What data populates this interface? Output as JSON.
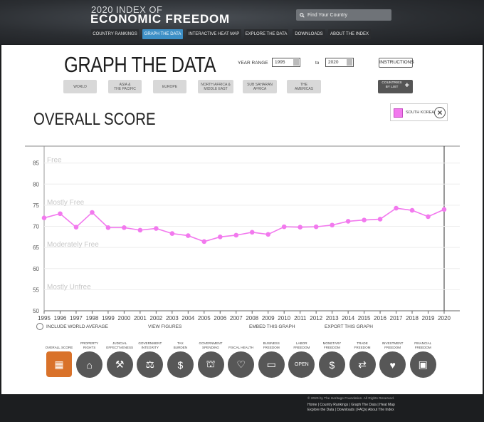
{
  "header": {
    "brand_small": "2020 INDEX OF",
    "brand_big": "ECONOMIC FREEDOM",
    "search_placeholder": "Find Your Country",
    "nav": [
      {
        "label": "COUNTRY RANKINGS",
        "active": false
      },
      {
        "label": "GRAPH THE DATA",
        "active": true
      },
      {
        "label": "INTERACTIVE HEAT MAP",
        "active": false
      },
      {
        "label": "EXPLORE THE DATA",
        "active": false
      },
      {
        "label": "DOWNLOADS",
        "active": false
      },
      {
        "label": "ABOUT THE INDEX",
        "active": false
      }
    ]
  },
  "controls": {
    "page_title": "GRAPH THE DATA",
    "year_range_label": "YEAR RANGE",
    "year_from": "1995",
    "to_label": "to",
    "year_to": "2020",
    "instructions": "INSTRUCTIONS",
    "regions": [
      {
        "label": "WORLD"
      },
      {
        "label": "ASIA &\nTHE PACIFIC"
      },
      {
        "label": "EUROPE"
      },
      {
        "label": "NORTH AFRICA &\nMIDDLE EAST"
      },
      {
        "label": "SUB SAHARAN\nAFRICA"
      },
      {
        "label": "THE\nAMERICAS"
      }
    ],
    "countries_by_list": "COUNTRIES\nBY LIST"
  },
  "chart_title": "OVERALL SCORE",
  "legend": {
    "country": "SOUTH KOREA",
    "color": "#f279ee",
    "close_icon": "close-icon"
  },
  "chart_data": {
    "type": "line",
    "x": [
      1995,
      1996,
      1997,
      1998,
      1999,
      2000,
      2001,
      2002,
      2003,
      2004,
      2005,
      2006,
      2007,
      2008,
      2009,
      2010,
      2011,
      2012,
      2013,
      2014,
      2015,
      2016,
      2017,
      2018,
      2019,
      2020
    ],
    "series": [
      {
        "name": "SOUTH KOREA",
        "color": "#f279ee",
        "values": [
          72.0,
          73.0,
          69.8,
          73.3,
          69.7,
          69.7,
          69.1,
          69.5,
          68.3,
          67.8,
          66.4,
          67.5,
          67.9,
          68.6,
          68.1,
          69.9,
          69.8,
          69.9,
          70.3,
          71.2,
          71.5,
          71.7,
          74.3,
          73.8,
          72.3,
          74.0
        ]
      }
    ],
    "ylim": [
      50,
      89
    ],
    "yticks": [
      50,
      55,
      60,
      65,
      70,
      75,
      80,
      85
    ],
    "bands": [
      {
        "label": "Free",
        "y": 85
      },
      {
        "label": "Mostly Free",
        "y": 75
      },
      {
        "label": "Moderately Free",
        "y": 65
      },
      {
        "label": "Mostly Unfree",
        "y": 55
      }
    ],
    "grid": true
  },
  "chart_options": {
    "include_world_average": "INCLUDE WORLD AVERAGE",
    "view_figures": "VIEW FIGURES",
    "embed": "EMBED THIS GRAPH",
    "export": "EXPORT THIS GRAPH"
  },
  "categories": [
    {
      "label": "OVERALL SCORE",
      "icon": "calculator-icon",
      "glyph": "▦",
      "active": true
    },
    {
      "label": "PROPERTY\nRIGHTS",
      "icon": "house-icon",
      "glyph": "⌂",
      "active": false
    },
    {
      "label": "JUDICIAL\nEFFECTIVENESS",
      "icon": "gavel-icon",
      "glyph": "⚒",
      "active": false
    },
    {
      "label": "GOVERNMENT\nINTEGRITY",
      "icon": "scales-icon",
      "glyph": "⚖",
      "active": false
    },
    {
      "label": "TAX\nBURDEN",
      "icon": "money-bag-icon",
      "glyph": "$",
      "active": false
    },
    {
      "label": "GOVERNMENT\nSPENDING",
      "icon": "capitol-icon",
      "glyph": "⛫",
      "active": false
    },
    {
      "label": "FISCAL HEALTH",
      "icon": "heartbeat-icon",
      "glyph": "♡",
      "active": false
    },
    {
      "label": "BUSINESS\nFREEDOM",
      "icon": "briefcase-icon",
      "glyph": "▭",
      "active": false
    },
    {
      "label": "LABOR\nFREEDOM",
      "icon": "open-sign-icon",
      "glyph": "OPEN",
      "active": false
    },
    {
      "label": "MONETARY\nFREEDOM",
      "icon": "cash-register-icon",
      "glyph": "$",
      "active": false
    },
    {
      "label": "TRADE\nFREEDOM",
      "icon": "globe-arrows-icon",
      "glyph": "⇄",
      "active": false
    },
    {
      "label": "INVESTMENT\nFREEDOM",
      "icon": "piggy-bank-icon",
      "glyph": "♥",
      "active": false
    },
    {
      "label": "FINANCIAL\nFREEDOM",
      "icon": "safe-icon",
      "glyph": "▣",
      "active": false
    }
  ],
  "footer": {
    "copyright": "© 2020 by The Heritage Foundation. All Rights Reserved.",
    "line1": "Home | Country Rankings | Graph The Data | Heat Map",
    "line2": "Explore the Data | Downloads | FAQs| About The Index"
  }
}
